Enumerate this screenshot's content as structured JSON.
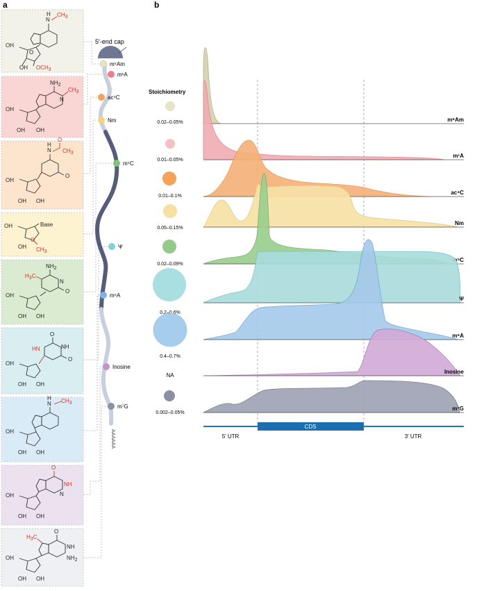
{
  "panel_a": {
    "label": "a",
    "cap_label": "5′-end cap",
    "polyA": "AAAAAA",
    "mods": [
      {
        "label": "m⁶Am",
        "color": "#e6e3c6",
        "bg": "#f3f2e9"
      },
      {
        "label": "m¹A",
        "color": "#ef7c86",
        "bg": "#f9d5d3"
      },
      {
        "label": "ac⁴C",
        "color": "#f5a25a",
        "bg": "#fde4cd"
      },
      {
        "label": "Nm",
        "color": "#f2d47f",
        "bg": "#fdf3d1"
      },
      {
        "label": "m⁵C",
        "color": "#7fc37c",
        "bg": "#dbebd2"
      },
      {
        "label": "Ψ",
        "color": "#7fd3d8",
        "bg": "#d8eef0"
      },
      {
        "label": "m⁶A",
        "color": "#7fb2e3",
        "bg": "#d9ebf7"
      },
      {
        "label": "Inosine",
        "color": "#c293cc",
        "bg": "#ece1ef"
      },
      {
        "label": "m⁷G",
        "color": "#8a8fa4",
        "bg": "#eef0f3"
      }
    ],
    "structures": {
      "s1": {
        "n": "N",
        "h": "H",
        "ch3": "CH",
        "ch3_sub": "3",
        "oh": "OH",
        "och3": "OCH",
        "och3_sub": "3",
        "o": "O"
      },
      "s2": {
        "nh2": "NH",
        "nh2_sub": "2",
        "n": "N",
        "ch3": "CH",
        "ch3_sub": "3",
        "oh": "OH",
        "o": "O"
      },
      "s3": {
        "n": "N",
        "h": "H",
        "o": "O",
        "ch3": "CH",
        "ch3_sub": "3",
        "oh": "OH"
      },
      "s4": {
        "base": "Base",
        "oh": "OH",
        "o": "O",
        "ch3": "CH",
        "ch3_sub": "3"
      },
      "s5": {
        "nh2": "NH",
        "nh2_sub": "2",
        "h3c": "H",
        "h3c_sub": "3",
        "h3c_c": "C",
        "n": "N",
        "o": "O",
        "oh": "OH"
      },
      "s6": {
        "nh": "HN",
        "n": "N",
        "h": "H",
        "o": "O",
        "oh": "OH"
      },
      "s7": {
        "n": "N",
        "h": "H",
        "ch3": "CH",
        "ch3_sub": "3",
        "oh": "OH",
        "o": "O"
      },
      "s8": {
        "nh": "NH",
        "n": "N",
        "o": "O",
        "oh": "OH"
      },
      "s9": {
        "h3c": "H",
        "h3c_sub": "3",
        "h3c_c": "C",
        "n": "N",
        "nh": "NH",
        "nh2": "NH",
        "nh2_sub": "2",
        "o": "O",
        "oh": "OH"
      }
    }
  },
  "panel_b": {
    "label": "b",
    "legend_title": "Stoichiometry",
    "legend": [
      {
        "label": "0.02–0.05%",
        "color": "#e6e3c6",
        "size": "small"
      },
      {
        "label": "0.01–0.05%",
        "color": "#f4c2c5",
        "size": "small"
      },
      {
        "label": "0.01–0.1%",
        "color": "#f5a25a",
        "size": "small"
      },
      {
        "label": "0.05–0.15%",
        "color": "#f8e0a3",
        "size": "small"
      },
      {
        "label": "0.02–0.09%",
        "color": "#94c98a",
        "size": "small"
      },
      {
        "label": "0.2–0.6%",
        "color": "#a9dfe0",
        "size": "large"
      },
      {
        "label": "0.4–0.7%",
        "color": "#a7cdec",
        "size": "large"
      },
      {
        "label": "NA",
        "color": "",
        "size": "none"
      },
      {
        "label": "0.002–0.05%",
        "color": "#8a8fa4",
        "size": "small"
      }
    ],
    "ridges": [
      {
        "name": "m⁶Am",
        "fill": "#d8d4b6",
        "stroke": "#b9b395"
      },
      {
        "name": "m¹A",
        "fill": "#f0aeb2",
        "stroke": "#e07f86"
      },
      {
        "name": "ac⁴C",
        "fill": "#f5b27a",
        "stroke": "#e8954a"
      },
      {
        "name": "Nm",
        "fill": "#f7e1a6",
        "stroke": "#e2c67a"
      },
      {
        "name": "m⁵C",
        "fill": "#9ccf8f",
        "stroke": "#6fae62"
      },
      {
        "name": "Ψ",
        "fill": "#a9dcdc",
        "stroke": "#6fc0c4"
      },
      {
        "name": "m⁶A",
        "fill": "#a5c9ea",
        "stroke": "#6fa4d4"
      },
      {
        "name": "Inosine",
        "fill": "#d1acd7",
        "stroke": "#a87bb3"
      },
      {
        "name": "m⁷G",
        "fill": "#a2a6b7",
        "stroke": "#767b90"
      }
    ],
    "regions": {
      "utr5": "5′ UTR",
      "cds": "CDS",
      "utr3": "3′ UTR"
    }
  }
}
